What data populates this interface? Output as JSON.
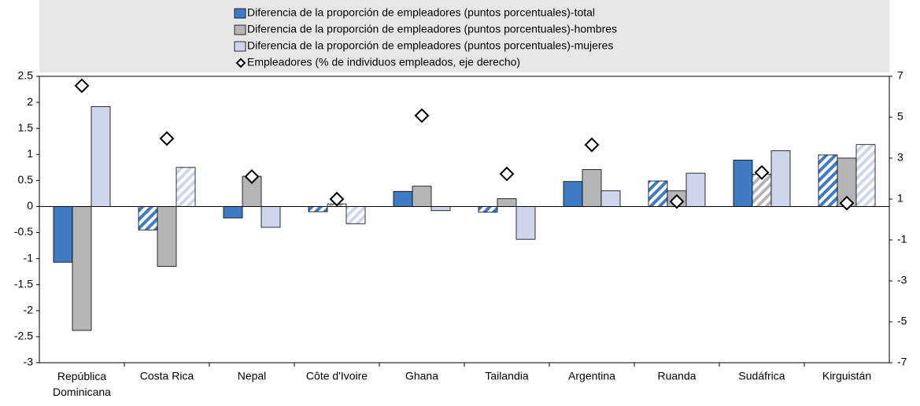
{
  "chart_data": {
    "type": "bar",
    "categories": [
      "República Dominicana",
      "Costa Rica",
      "Nepal",
      "Côte d'Ivoire",
      "Ghana",
      "Tailandia",
      "Argentina",
      "Ruanda",
      "Sudáfrica",
      "Kirguistán"
    ],
    "series": [
      {
        "name": "Diferencia de la proporción de empleadores (puntos porcentuales)-total",
        "color": "#3f7ac4",
        "values": [
          -1.07,
          -0.45,
          -0.22,
          -0.1,
          0.29,
          -0.11,
          0.48,
          0.49,
          0.89,
          0.99
        ],
        "hatched": [
          false,
          true,
          false,
          true,
          false,
          true,
          false,
          true,
          false,
          true
        ]
      },
      {
        "name": "Diferencia de la proporción de empleadores (puntos porcentuales)-hombres",
        "color": "#b5b5b5",
        "values": [
          -2.38,
          -1.15,
          0.58,
          0.05,
          0.39,
          0.15,
          0.71,
          0.3,
          0.62,
          0.93
        ],
        "hatched": [
          false,
          false,
          false,
          true,
          false,
          false,
          false,
          false,
          true,
          false
        ]
      },
      {
        "name": "Diferencia de la proporción de empleadores (puntos porcentuales)-mujeres",
        "color": "#cdd6ec",
        "values": [
          1.92,
          0.75,
          -0.4,
          -0.33,
          -0.08,
          -0.63,
          0.3,
          0.64,
          1.07,
          1.19
        ],
        "hatched": [
          false,
          true,
          false,
          true,
          false,
          false,
          false,
          false,
          false,
          true
        ]
      },
      {
        "name": "Empleadores (% de individuos empleados, eje derecho)",
        "type": "scatter",
        "axis": "y2",
        "marker": "diamond",
        "values": [
          6.54,
          3.96,
          2.1,
          1.0,
          5.08,
          2.23,
          3.65,
          0.88,
          2.3,
          0.8
        ]
      }
    ],
    "ylim": [
      -3,
      2.5
    ],
    "yticks": [
      2.5,
      2,
      1.5,
      1,
      0.5,
      0,
      -0.5,
      -1,
      -1.5,
      -2,
      -2.5,
      -3
    ],
    "y2lim": [
      -7,
      7
    ],
    "y2ticks": [
      7,
      5,
      3,
      1,
      -1,
      -3,
      -5,
      -7
    ],
    "legend": "top"
  }
}
